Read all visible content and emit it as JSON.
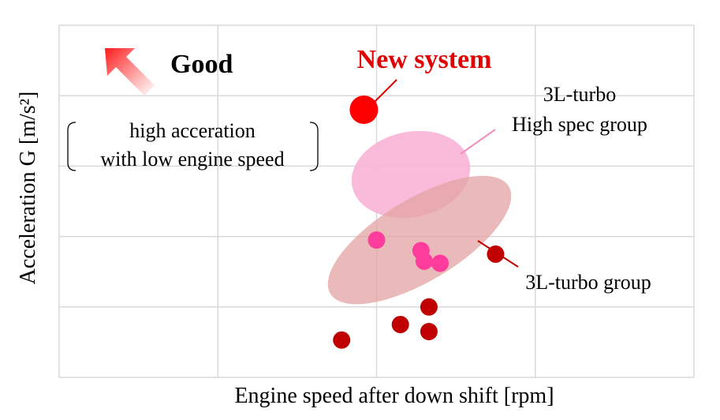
{
  "chart_data": {
    "type": "scatter",
    "xlabel": "Engine speed after down shift [rpm]",
    "ylabel": "Acceleration G [m/s²]",
    "xlim": [
      0,
      4
    ],
    "ylim": [
      0,
      5
    ],
    "grid": true,
    "good_label": "Good",
    "note_line1": "high acceration",
    "note_line2": "with low engine speed",
    "series": [
      {
        "name": "New system",
        "color": "#ff0000",
        "points": [
          [
            1.92,
            3.8
          ]
        ]
      },
      {
        "name": "3L-turbo High spec group",
        "label_lines": [
          "3L-turbo",
          "High spec group"
        ],
        "color": "#ff3c9b",
        "points": [
          [
            2.0,
            1.95
          ],
          [
            2.28,
            1.8
          ],
          [
            2.3,
            1.65
          ],
          [
            2.4,
            1.62
          ]
        ]
      },
      {
        "name": "3L-turbo group",
        "color": "#c00000",
        "points": [
          [
            1.78,
            0.53
          ],
          [
            2.15,
            0.75
          ],
          [
            2.33,
            1.0
          ],
          [
            2.33,
            0.65
          ],
          [
            2.75,
            1.75
          ]
        ]
      }
    ],
    "colors": {
      "grid": "#d9d9d9",
      "high_spec_ellipse": "#f9b3d6",
      "turbo_ellipse": "#e7b3b3",
      "good_arrow": "#ff2020",
      "text": "#000000"
    }
  }
}
